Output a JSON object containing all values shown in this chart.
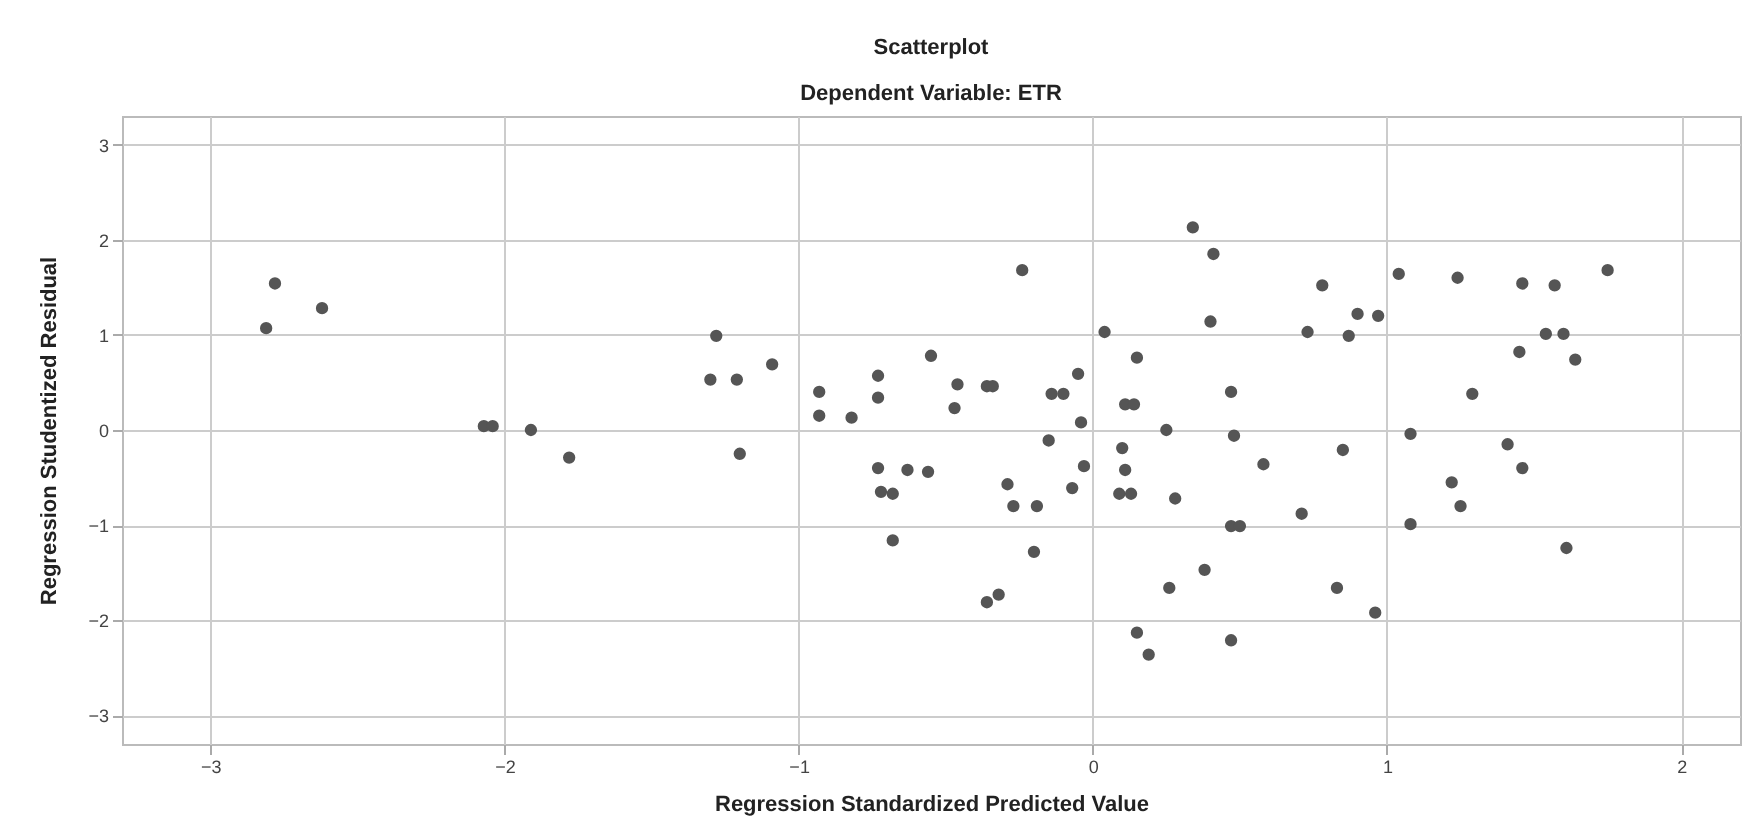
{
  "chart_data": {
    "type": "scatter",
    "title": "Scatterplot",
    "subtitle": "Dependent Variable: ETR",
    "xlabel": "Regression Standardized Predicted Value",
    "ylabel": "Regression Studentized Residual",
    "xlim": [
      -3.3,
      2.2
    ],
    "ylim": [
      -3.3,
      3.3
    ],
    "xticks": [
      -3,
      -2,
      -1,
      0,
      1,
      2
    ],
    "yticks": [
      -3,
      -2,
      -1,
      0,
      1,
      2,
      3
    ],
    "grid": true,
    "marker": "circle",
    "series": [
      {
        "color": "#555555",
        "x": [
          -2.81,
          -2.78,
          -2.62,
          -2.07,
          -2.04,
          -1.91,
          -1.78,
          -1.28,
          -1.3,
          -1.21,
          -1.09,
          -1.2,
          -0.93,
          -0.93,
          -0.82,
          -0.73,
          -0.73,
          -0.73,
          -0.63,
          -0.56,
          -0.72,
          -0.68,
          -0.68,
          -0.55,
          -0.46,
          -0.47,
          -0.36,
          -0.34,
          -0.24,
          -0.29,
          -0.27,
          -0.19,
          -0.2,
          -0.36,
          -0.32,
          -0.14,
          -0.1,
          -0.15,
          -0.05,
          -0.04,
          -0.03,
          -0.07,
          0.04,
          0.15,
          0.11,
          0.14,
          0.1,
          0.11,
          0.09,
          0.13,
          0.25,
          0.28,
          0.15,
          0.19,
          0.26,
          0.34,
          0.41,
          0.4,
          0.47,
          0.48,
          0.58,
          0.38,
          0.47,
          0.5,
          0.47,
          0.78,
          0.73,
          0.87,
          0.9,
          0.97,
          1.04,
          1.24,
          1.46,
          1.57,
          1.75,
          1.54,
          1.6,
          1.45,
          1.64,
          1.29,
          1.08,
          1.41,
          1.46,
          0.85,
          1.22,
          1.25,
          0.71,
          1.08,
          1.61,
          0.83,
          0.96
        ],
        "values": [
          1.07,
          1.54,
          1.28,
          0.04,
          0.04,
          0.0,
          -0.29,
          0.99,
          0.53,
          0.53,
          0.69,
          -0.25,
          0.4,
          0.15,
          0.13,
          0.57,
          0.34,
          -0.4,
          -0.42,
          -0.44,
          -0.65,
          -0.67,
          -1.16,
          0.78,
          0.48,
          0.23,
          0.46,
          0.46,
          1.68,
          -0.57,
          -0.8,
          -0.8,
          -1.28,
          -1.81,
          -1.73,
          0.38,
          0.38,
          -0.11,
          0.59,
          0.08,
          -0.38,
          -0.61,
          1.03,
          0.76,
          0.27,
          0.27,
          -0.19,
          -0.42,
          -0.67,
          -0.67,
          0.0,
          -0.72,
          -2.13,
          -2.36,
          -1.66,
          2.13,
          1.85,
          1.14,
          0.4,
          -0.06,
          -0.36,
          -1.47,
          -1.01,
          -1.01,
          -2.21,
          1.52,
          1.03,
          0.99,
          1.22,
          1.2,
          1.64,
          1.6,
          1.54,
          1.52,
          1.68,
          1.01,
          1.01,
          0.82,
          0.74,
          0.38,
          -0.04,
          -0.15,
          -0.4,
          -0.21,
          -0.55,
          -0.8,
          -0.88,
          -0.99,
          -1.24,
          -1.66,
          -1.92
        ]
      }
    ]
  }
}
